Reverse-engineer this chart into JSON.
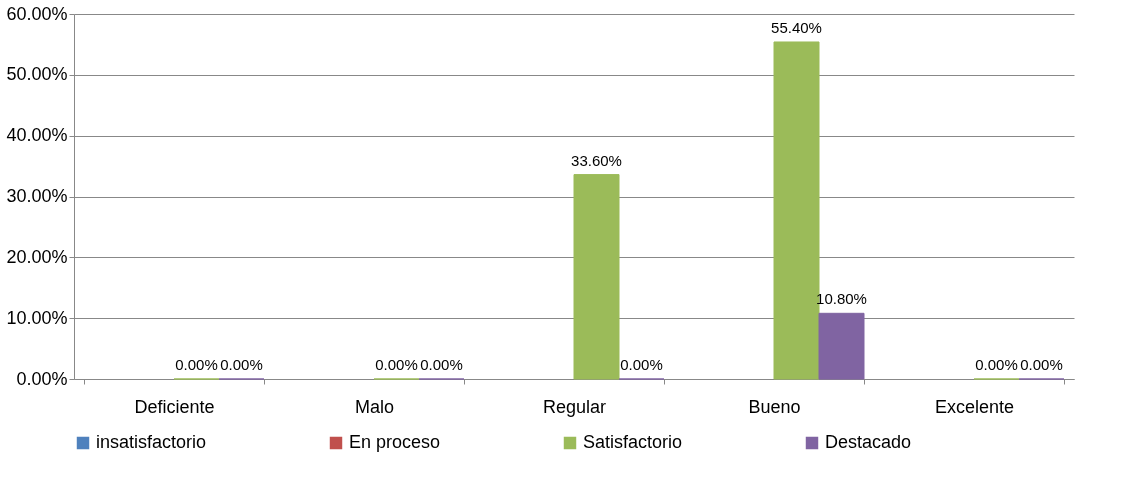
{
  "chart_data": {
    "type": "bar",
    "categories": [
      "Deficiente",
      "Malo",
      "Regular",
      "Bueno",
      "Excelente"
    ],
    "series": [
      {
        "name": "insatisfactorio",
        "color": "#4f81bd",
        "values": [
          null,
          null,
          null,
          null,
          null
        ]
      },
      {
        "name": "En proceso",
        "color": "#c0504d",
        "values": [
          null,
          null,
          null,
          null,
          null
        ]
      },
      {
        "name": "Satisfactorio",
        "color": "#9bbb59",
        "values": [
          0,
          0,
          33.6,
          55.4,
          0
        ],
        "value_labels": [
          "0.00%",
          "0.00%",
          "33.60%",
          "55.40%",
          "0.00%"
        ]
      },
      {
        "name": "Destacado",
        "color": "#8064a2",
        "values": [
          0,
          0,
          0,
          10.8,
          0
        ],
        "value_labels": [
          "0.00%",
          "0.00%",
          "0.00%",
          "10.80%",
          "0.00%"
        ]
      }
    ],
    "ylim": [
      0,
      60
    ],
    "yticks": [
      {
        "value": 0,
        "label": "0.00%"
      },
      {
        "value": 10,
        "label": "10.00%"
      },
      {
        "value": 20,
        "label": "20.00%"
      },
      {
        "value": 30,
        "label": "30.00%"
      },
      {
        "value": 40,
        "label": "40.00%"
      },
      {
        "value": 50,
        "label": "50.00%"
      },
      {
        "value": 60,
        "label": "60.00%"
      }
    ],
    "grid": "y",
    "legend": "bottom"
  }
}
